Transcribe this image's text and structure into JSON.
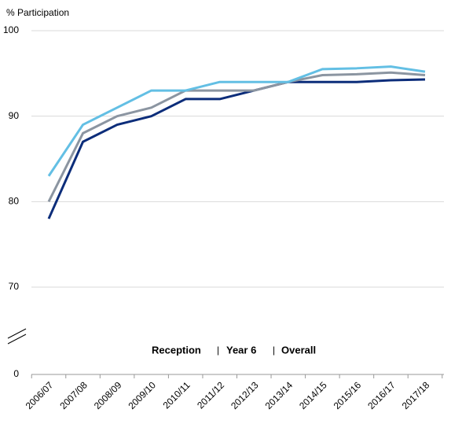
{
  "chart_data": {
    "type": "line",
    "y_axis_label": "% Participation",
    "categories": [
      "2006/07",
      "2007/08",
      "2008/09",
      "2009/10",
      "2010/11",
      "2011/12",
      "2012/13",
      "2013/14",
      "2014/15",
      "2015/16",
      "2016/17",
      "2017/18"
    ],
    "series": [
      {
        "name": "Reception",
        "color": "#63bfe4",
        "values": [
          83,
          89,
          91,
          93,
          93,
          94,
          94,
          94,
          95.5,
          95.6,
          95.8,
          95.2
        ]
      },
      {
        "name": "Year 6",
        "color": "#0c2d7a",
        "values": [
          78,
          87,
          89,
          90,
          92,
          92,
          93,
          94,
          94,
          94,
          94.2,
          94.3
        ]
      },
      {
        "name": "Overall",
        "color": "#8b95a1",
        "values": [
          80,
          88,
          90,
          91,
          93,
          93,
          93,
          94,
          94.8,
          94.9,
          95.1,
          94.8
        ]
      }
    ],
    "ylim": [
      0,
      100
    ],
    "axis_break": [
      0,
      70
    ],
    "yticks": [
      0,
      70,
      80,
      90,
      100
    ],
    "grid": true,
    "legend_separator": "|"
  }
}
